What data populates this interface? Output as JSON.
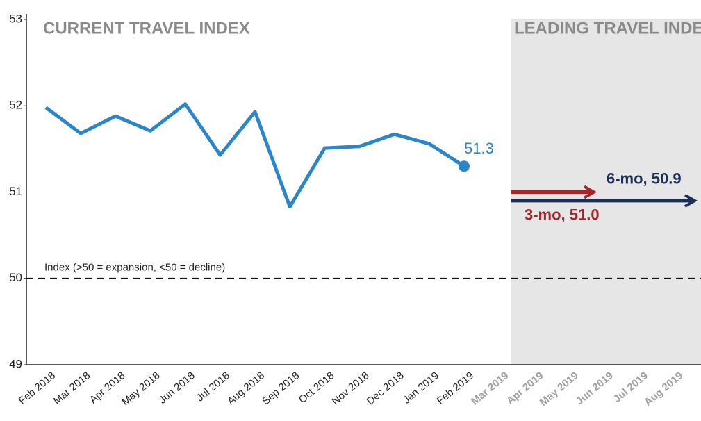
{
  "chart_data": {
    "type": "line",
    "title": "CURRENT TRAVEL INDEX",
    "forecast_title": "LEADING TRAVEL INDEX",
    "categories": [
      "Feb 2018",
      "Mar 2018",
      "Apr 2018",
      "May 2018",
      "Jun 2018",
      "Jul 2018",
      "Aug 2018",
      "Sep 2018",
      "Oct 2018",
      "Nov 2018",
      "Dec 2018",
      "Jan 2019",
      "Feb 2019",
      "Mar 2019",
      "Apr 2019",
      "May 2019",
      "Jun 2019",
      "Jul 2019",
      "Aug 2019"
    ],
    "series": [
      {
        "name": "Current Travel Index",
        "color": "#2a86c9",
        "values": [
          51.98,
          51.68,
          51.88,
          51.71,
          52.02,
          51.43,
          51.93,
          50.83,
          51.51,
          51.53,
          51.67,
          51.56,
          51.3,
          null,
          null,
          null,
          null,
          null,
          null
        ],
        "end_label": "51.3"
      }
    ],
    "forecasts": [
      {
        "label": "3-mo, 51.0",
        "value": 51.0,
        "color": "#a3262a"
      },
      {
        "label": "6-mo, 50.9",
        "value": 50.9,
        "color": "#1c2f57"
      }
    ],
    "reference": {
      "value": 50,
      "label": "Index (>50 = expansion, <50 = decline)"
    },
    "ylim": [
      49,
      53
    ],
    "yticks": [
      49,
      50,
      51,
      52,
      53
    ]
  }
}
